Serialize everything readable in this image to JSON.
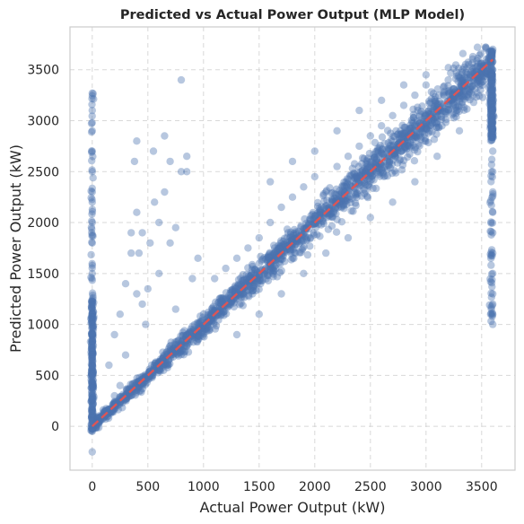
{
  "chart_data": {
    "type": "scatter",
    "title": "Predicted vs Actual Power Output (MLP Model)",
    "xlabel": "Actual Power Output (kW)",
    "ylabel": "Predicted Power Output (kW)",
    "xlim": [
      -200,
      3800
    ],
    "ylim": [
      -430,
      3920
    ],
    "xticks": [
      0,
      500,
      1000,
      1500,
      2000,
      2500,
      3000,
      3500
    ],
    "yticks": [
      0,
      500,
      1000,
      1500,
      2000,
      2500,
      3000,
      3500
    ],
    "grid": true,
    "marker_color": "#4c72b0",
    "marker_alpha": 0.4,
    "reference_line": {
      "x": [
        0,
        3600
      ],
      "y": [
        0,
        3600
      ],
      "color": "#dd5555",
      "style": "dashed"
    },
    "series": [
      {
        "points_x": [
          0,
          0,
          0,
          0,
          0,
          0,
          0,
          0,
          0,
          0,
          0,
          0,
          0,
          0,
          0,
          0,
          0,
          0,
          0,
          0,
          0,
          0,
          0,
          0,
          30,
          60,
          90,
          120,
          160,
          200,
          250,
          300,
          350,
          400,
          450,
          500,
          550,
          600,
          650,
          700,
          750,
          800,
          850,
          900,
          950,
          1000,
          1050,
          1100,
          1150,
          1200,
          1250,
          1300,
          1350,
          1400,
          1450,
          1500,
          1550,
          1600,
          1650,
          1700,
          1750,
          1800,
          1850,
          1900,
          1950,
          2000,
          2050,
          2100,
          2150,
          2200,
          2250,
          2300,
          2350,
          2400,
          2450,
          2500,
          2550,
          2600,
          2650,
          2700,
          2750,
          2800,
          2850,
          2900,
          2950,
          3000,
          3050,
          3100,
          3150,
          3200,
          3250,
          3300,
          3350,
          3400,
          3450,
          3500,
          3550,
          3600,
          3600,
          3600,
          3600,
          3600,
          3600,
          3600,
          3600,
          3600,
          3600,
          3600,
          3600,
          3600,
          3600,
          3600,
          3600,
          150,
          200,
          250,
          300,
          350,
          380,
          400,
          420,
          450,
          480,
          520,
          560,
          600,
          650,
          700,
          750,
          800,
          850,
          900,
          950,
          1100,
          1200,
          1300,
          1400,
          1500,
          1600,
          1700,
          1800,
          1900,
          2000,
          2100,
          2200,
          2300,
          2400,
          2500,
          2600,
          2700,
          2800,
          2900,
          3000,
          1300,
          1500,
          1700,
          1900,
          2100,
          2300,
          2500,
          2700,
          2900,
          3100,
          3300,
          2000,
          2200,
          2400,
          2600,
          2800,
          3000,
          3200,
          3400,
          1600,
          1800,
          400,
          450,
          350,
          400,
          600,
          700,
          800,
          850,
          300,
          250,
          200,
          650,
          550,
          500,
          750
        ],
        "points_y": [
          -250,
          -50,
          50,
          120,
          200,
          300,
          400,
          500,
          600,
          700,
          800,
          900,
          1000,
          1100,
          1200,
          1500,
          1800,
          2000,
          2200,
          2300,
          2500,
          2900,
          3100,
          3270,
          10,
          40,
          70,
          110,
          150,
          190,
          240,
          290,
          340,
          390,
          440,
          490,
          540,
          590,
          640,
          690,
          740,
          790,
          840,
          890,
          940,
          990,
          1040,
          1090,
          1140,
          1190,
          1240,
          1290,
          1340,
          1390,
          1440,
          1490,
          1540,
          1590,
          1640,
          1690,
          1740,
          1790,
          1840,
          1890,
          1940,
          1990,
          2040,
          2090,
          2140,
          2190,
          2240,
          2290,
          2340,
          2390,
          2440,
          2490,
          2540,
          2590,
          2640,
          2690,
          2740,
          2790,
          2840,
          2890,
          2940,
          2990,
          3040,
          3090,
          3140,
          3190,
          3240,
          3290,
          3340,
          3390,
          3440,
          3490,
          3540,
          3700,
          3500,
          3300,
          3100,
          2900,
          2700,
          2500,
          2300,
          2100,
          1900,
          1700,
          1500,
          1300,
          1100,
          1000,
          1200,
          600,
          900,
          1100,
          1400,
          1900,
          2600,
          2800,
          1700,
          1200,
          1000,
          1800,
          2200,
          1500,
          2850,
          2600,
          1950,
          3400,
          2500,
          1450,
          1650,
          1450,
          1550,
          1650,
          1750,
          1850,
          2000,
          2150,
          2250,
          2350,
          2450,
          2300,
          2550,
          2650,
          2750,
          2850,
          2950,
          3050,
          3150,
          3250,
          3350,
          900,
          1100,
          1300,
          1500,
          1700,
          1850,
          2050,
          2200,
          2400,
          2650,
          2900,
          2700,
          2900,
          3100,
          3200,
          3350,
          3450,
          3400,
          3450,
          2400,
          2600,
          2100,
          1900,
          1700,
          1300,
          2000,
          1800,
          2500,
          2650,
          700,
          400,
          300,
          2300,
          2700,
          1350,
          1150
        ]
      }
    ]
  }
}
